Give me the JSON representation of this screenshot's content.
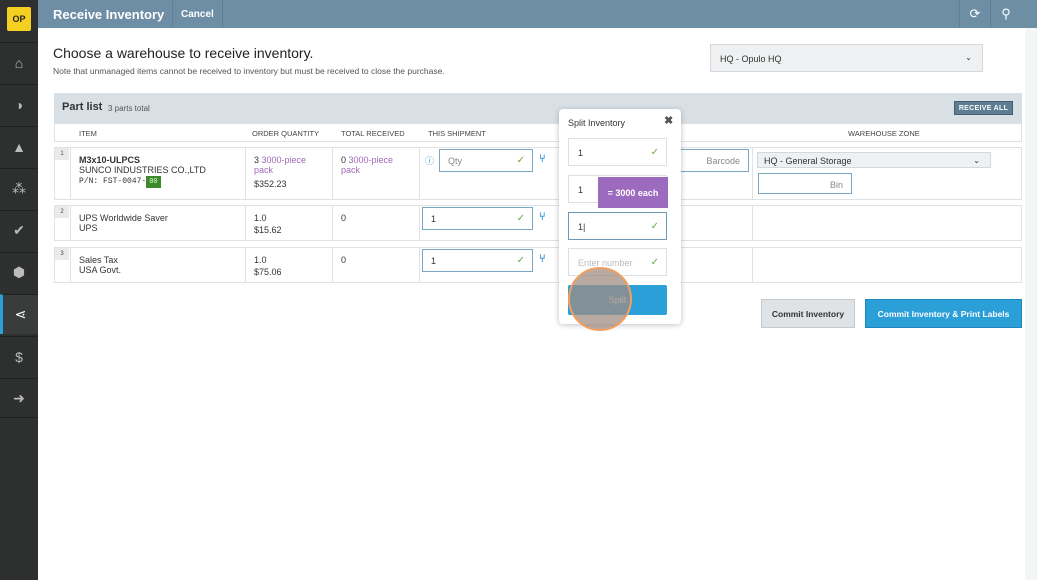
{
  "app": {
    "logo": "OP",
    "title": "Receive Inventory",
    "cancel": "Cancel"
  },
  "sidebar": {
    "items": [
      {
        "icon": "home-icon",
        "glyph": "⌂"
      },
      {
        "icon": "dashboard-icon",
        "glyph": "◑"
      },
      {
        "icon": "engineering-icon",
        "glyph": "▲"
      },
      {
        "icon": "network-icon",
        "glyph": "⁂"
      },
      {
        "icon": "check-circle-icon",
        "glyph": "✔"
      },
      {
        "icon": "box-icon",
        "glyph": "⬢"
      },
      {
        "icon": "share-icon",
        "glyph": "⋖"
      },
      {
        "icon": "dollar-icon",
        "glyph": "$"
      },
      {
        "icon": "logout-icon",
        "glyph": "➜"
      }
    ],
    "active_index": 6
  },
  "main": {
    "heading": "Choose a warehouse to receive inventory.",
    "note": "Note that unmanaged items cannot be received to inventory but must be received to close the purchase.",
    "warehouse": "HQ - Opulo HQ"
  },
  "partlist": {
    "title": "Part list",
    "count": "3 parts total",
    "receive_all": "RECEIVE ALL",
    "columns": [
      "ITEM",
      "ORDER QUANTITY",
      "TOTAL RECEIVED",
      "THIS SHIPMENT",
      "WAREHOUSE ZONE"
    ],
    "rows": [
      {
        "num": "1",
        "name": "M3x10-ULPCS",
        "vendor": "SUNCO INDUSTRIES CO.,LTD",
        "pn_label": "P/N: FST-0047-",
        "pn_badge": "00",
        "order_qty": "3",
        "order_unit": "3000-piece pack",
        "price": "$352.23",
        "received": "0",
        "received_unit": "3000-piece pack",
        "shipment_placeholder": "Qty",
        "barcode_placeholder": "Barcode",
        "zone": "HQ - General Storage",
        "bin_placeholder": "Bin"
      },
      {
        "num": "2",
        "name": "UPS Worldwide Saver",
        "vendor": "UPS",
        "order_qty": "1.0",
        "price": "$15.62",
        "received": "0",
        "shipment": "1"
      },
      {
        "num": "3",
        "name": "Sales Tax",
        "vendor": "USA Govt.",
        "order_qty": "1.0",
        "price": "$75.06",
        "received": "0",
        "shipment": "1"
      }
    ]
  },
  "popup": {
    "title": "Split Inventory",
    "inputs": [
      "1",
      "1",
      "1"
    ],
    "placeholder": "Enter number",
    "tooltip": "= 3000  each",
    "split": "Split"
  },
  "actions": {
    "commit": "Commit Inventory",
    "commit_print": "Commit Inventory & Print Labels"
  },
  "colors": {
    "header": "#6d8ea5",
    "accent": "#2a9fd8",
    "tooltip": "#9c6bbf"
  }
}
